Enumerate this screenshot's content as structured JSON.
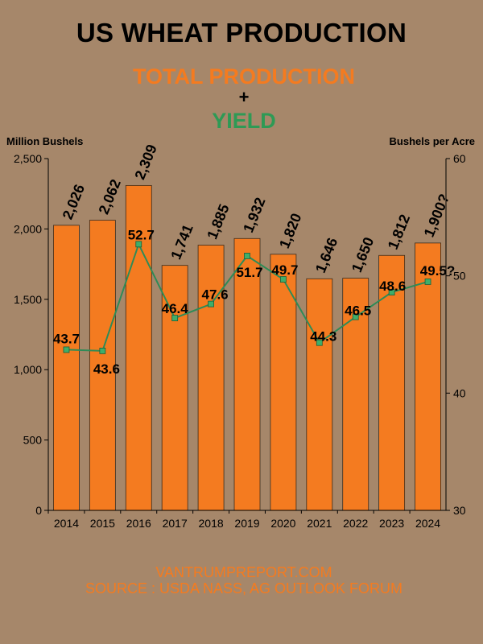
{
  "header": {
    "title": "US WHEAT PRODUCTION",
    "subtitle_production": "TOTAL PRODUCTION",
    "plus": "+",
    "subtitle_yield": "YIELD"
  },
  "footer": {
    "site": "VANTRUMPREPORT.COM",
    "source": "SOURCE : USDA NASS, AG OUTLOOK FORUM"
  },
  "colors": {
    "bar": "#f47b20",
    "line": "#2e8b57",
    "background": "#a6876a"
  },
  "chart_data": {
    "type": "bar",
    "categories": [
      "2014",
      "2015",
      "2016",
      "2017",
      "2018",
      "2019",
      "2020",
      "2021",
      "2022",
      "2023",
      "2024"
    ],
    "series": [
      {
        "values": [
          2026,
          2062,
          2309,
          1741,
          1885,
          1932,
          1820,
          1646,
          1650,
          1812,
          1900
        ],
        "labels": [
          "2,026",
          "2,062",
          "2,309",
          "1,741",
          "1,885",
          "1,932",
          "1,820",
          "1,646",
          "1,650",
          "1,812",
          "1,900?"
        ]
      },
      {
        "type": "line",
        "values": [
          43.7,
          43.6,
          52.7,
          46.4,
          47.6,
          51.7,
          49.7,
          44.3,
          46.5,
          48.6,
          49.5
        ],
        "labels": [
          "43.7",
          "43.6",
          "52.7",
          "46.4",
          "47.6",
          "51.7",
          "49.7",
          "44.3",
          "46.5",
          "48.6",
          "49.5?"
        ]
      }
    ],
    "ylabel": "Million Bushels",
    "ylabel_right": "Bushels per Acre",
    "ylim": [
      0,
      2500
    ],
    "ylim_right": [
      30,
      60
    ],
    "yticks": [
      "0",
      "500",
      "1,000",
      "1,500",
      "2,000",
      "2,500"
    ],
    "yticks_right": [
      "30",
      "40",
      "50",
      "60"
    ],
    "grid": false
  }
}
